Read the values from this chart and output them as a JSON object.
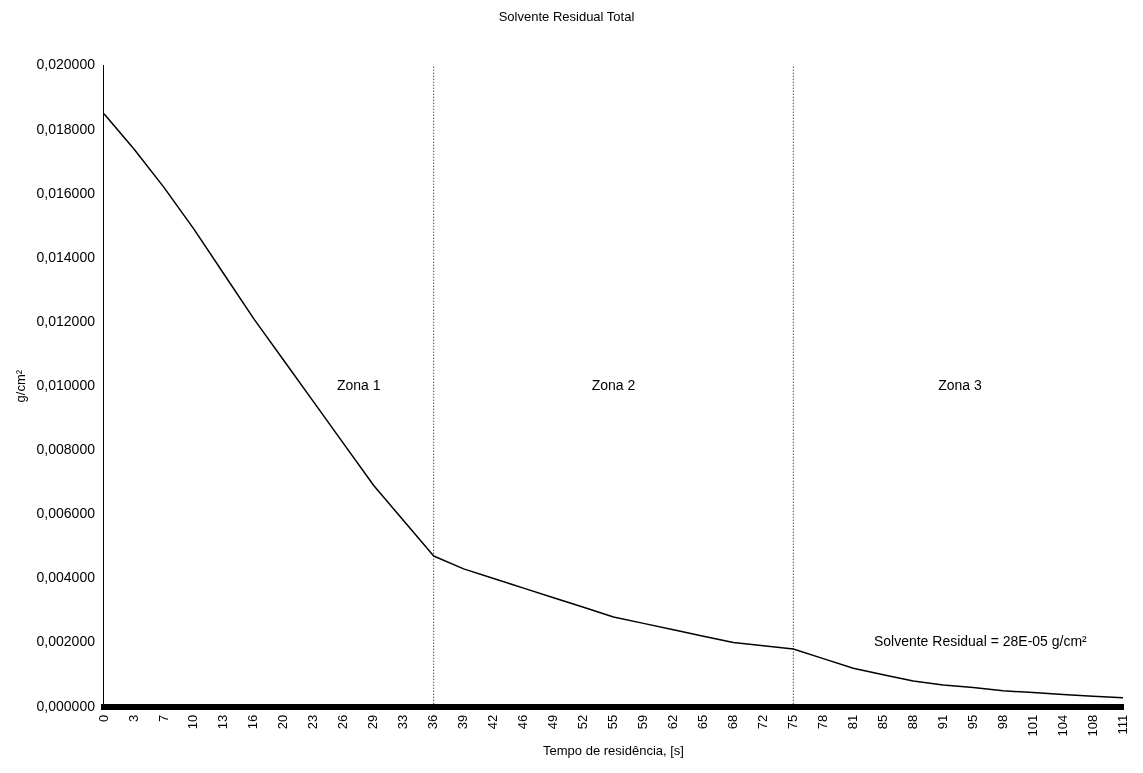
{
  "chart_data": {
    "type": "line",
    "title": "Solvente Residual Total",
    "xlabel": "Tempo de residência, [s]",
    "ylabel": "g/cm²",
    "categories": [
      "0",
      "3",
      "7",
      "10",
      "13",
      "16",
      "20",
      "23",
      "26",
      "29",
      "33",
      "36",
      "39",
      "42",
      "46",
      "49",
      "52",
      "55",
      "59",
      "62",
      "65",
      "68",
      "72",
      "75",
      "78",
      "81",
      "85",
      "88",
      "91",
      "95",
      "98",
      "101",
      "104",
      "108",
      "111"
    ],
    "series": [
      {
        "color": "#000000",
        "values": [
          0.0185,
          0.0174,
          0.0162,
          0.0149,
          0.0135,
          0.0121,
          0.0108,
          0.0095,
          0.0082,
          0.0069,
          0.0058,
          0.0047,
          0.0043,
          0.004,
          0.0037,
          0.0034,
          0.0031,
          0.0028,
          0.0026,
          0.0024,
          0.0022,
          0.002,
          0.0019,
          0.0018,
          0.0015,
          0.0012,
          0.001,
          0.0008,
          0.00068,
          0.0006,
          0.0005,
          0.00044,
          0.00038,
          0.00033,
          0.00028
        ]
      }
    ],
    "ylim": [
      0,
      0.02
    ],
    "yticks": [
      {
        "value": 0,
        "label": "0,000000"
      },
      {
        "value": 0.002,
        "label": "0,002000"
      },
      {
        "value": 0.004,
        "label": "0,004000"
      },
      {
        "value": 0.006,
        "label": "0,006000"
      },
      {
        "value": 0.008,
        "label": "0,008000"
      },
      {
        "value": 0.01,
        "label": "0,010000"
      },
      {
        "value": 0.012,
        "label": "0,012000"
      },
      {
        "value": 0.014,
        "label": "0,014000"
      },
      {
        "value": 0.016,
        "label": "0,016000"
      },
      {
        "value": 0.018,
        "label": "0,018000"
      },
      {
        "value": 0.02,
        "label": "0,020000"
      }
    ],
    "ref_lines": [
      {
        "axis": "x",
        "value": "36",
        "label": null,
        "color": "#000000",
        "line_style": "dotted"
      },
      {
        "axis": "x",
        "value": "75",
        "label": null,
        "color": "#000000",
        "line_style": "dotted"
      }
    ],
    "annotations": [
      "Zona 1",
      "Zona 2",
      "Zona 3",
      "Solvente Residual = 28E-05 g/cm²"
    ],
    "grid": false,
    "legend": false,
    "marker": "none",
    "line_style": "solid"
  }
}
